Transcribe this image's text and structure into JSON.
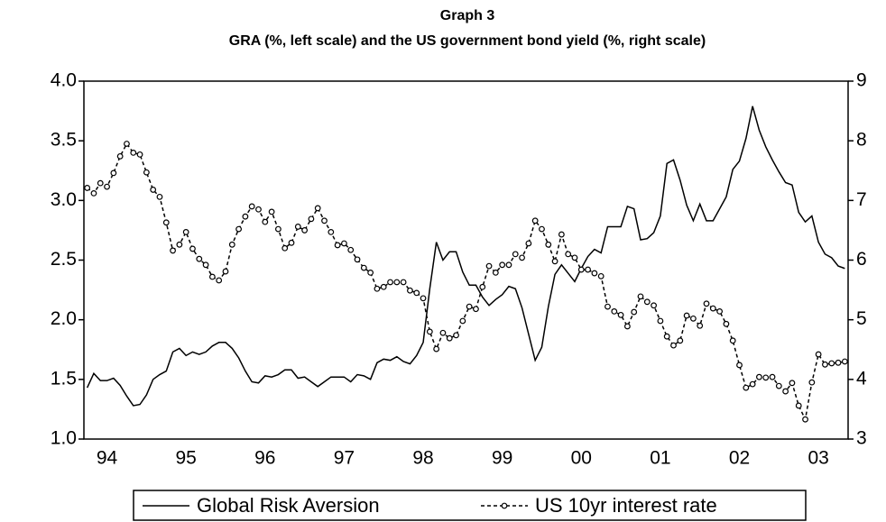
{
  "chart_data": {
    "type": "line",
    "title": "Graph 3",
    "subtitle": "GRA (%, left scale) and the US government bond yield (%, right scale)",
    "categories": [
      null,
      null,
      null,
      "94",
      null,
      null,
      null,
      null,
      null,
      null,
      null,
      null,
      null,
      null,
      null,
      "95",
      null,
      null,
      null,
      null,
      null,
      null,
      null,
      null,
      null,
      null,
      null,
      "96",
      null,
      null,
      null,
      null,
      null,
      null,
      null,
      null,
      null,
      null,
      null,
      "97",
      null,
      null,
      null,
      null,
      null,
      null,
      null,
      null,
      null,
      null,
      null,
      "98",
      null,
      null,
      null,
      null,
      null,
      null,
      null,
      null,
      null,
      null,
      null,
      "99",
      null,
      null,
      null,
      null,
      null,
      null,
      null,
      null,
      null,
      null,
      null,
      "00",
      null,
      null,
      null,
      null,
      null,
      null,
      null,
      null,
      null,
      null,
      null,
      "01",
      null,
      null,
      null,
      null,
      null,
      null,
      null,
      null,
      null,
      null,
      null,
      "02",
      null,
      null,
      null,
      null,
      null,
      null,
      null,
      null,
      null,
      null,
      null,
      "03",
      null,
      null,
      null,
      null
    ],
    "ylim": [
      1,
      4
    ],
    "yticks": [
      {
        "value": 1,
        "label": "1.0"
      },
      1.5,
      {
        "value": 2,
        "label": "2.0"
      },
      2.5,
      {
        "value": 3,
        "label": "3.0"
      },
      3.5,
      {
        "value": 4,
        "label": "4.0"
      }
    ],
    "y2lim": [
      3,
      9
    ],
    "y2ticks": [
      3,
      4,
      5,
      6,
      7,
      8,
      9
    ],
    "legend": "bottom",
    "series": [
      {
        "name": "Global Risk Aversion",
        "color": "#000000",
        "axis": "y",
        "marker": "none",
        "values": [
          1.43,
          1.55,
          1.49,
          1.49,
          1.51,
          1.45,
          1.36,
          1.28,
          1.29,
          1.37,
          1.5,
          1.54,
          1.57,
          1.73,
          1.76,
          1.7,
          1.73,
          1.71,
          1.73,
          1.78,
          1.81,
          1.81,
          1.76,
          1.68,
          1.57,
          1.48,
          1.47,
          1.53,
          1.52,
          1.54,
          1.58,
          1.58,
          1.51,
          1.52,
          1.48,
          1.44,
          1.48,
          1.52,
          1.52,
          1.52,
          1.48,
          1.54,
          1.53,
          1.5,
          1.64,
          1.67,
          1.66,
          1.69,
          1.65,
          1.63,
          1.7,
          1.81,
          2.26,
          2.65,
          2.5,
          2.57,
          2.57,
          2.4,
          2.29,
          2.29,
          2.19,
          2.12,
          2.17,
          2.21,
          2.28,
          2.26,
          2.1,
          1.88,
          1.66,
          1.77,
          2.11,
          2.38,
          2.46,
          2.39,
          2.32,
          2.43,
          2.53,
          2.59,
          2.56,
          2.78,
          2.78,
          2.78,
          2.95,
          2.93,
          2.67,
          2.68,
          2.73,
          2.87,
          3.31,
          3.34,
          3.17,
          2.96,
          2.83,
          2.97,
          2.83,
          2.83,
          2.93,
          3.03,
          3.26,
          3.33,
          3.52,
          3.79,
          3.59,
          3.45,
          3.34,
          3.24,
          3.15,
          3.13,
          2.9,
          2.82,
          2.87,
          2.65,
          2.55,
          2.52,
          2.45,
          2.43
        ]
      },
      {
        "name": "US 10yr interest rate",
        "color": "#000000",
        "axis": "y2",
        "marker": "circle",
        "dashed": true,
        "values": [
          7.21,
          7.12,
          7.29,
          7.23,
          7.46,
          7.74,
          7.95,
          7.8,
          7.77,
          7.47,
          7.18,
          7.06,
          6.63,
          6.16,
          6.26,
          6.47,
          6.19,
          6.02,
          5.92,
          5.72,
          5.66,
          5.81,
          6.26,
          6.52,
          6.73,
          6.9,
          6.85,
          6.64,
          6.81,
          6.52,
          6.2,
          6.29,
          6.56,
          6.5,
          6.69,
          6.87,
          6.66,
          6.47,
          6.25,
          6.28,
          6.17,
          6.01,
          5.87,
          5.79,
          5.52,
          5.55,
          5.63,
          5.63,
          5.63,
          5.49,
          5.45,
          5.36,
          4.8,
          4.51,
          4.78,
          4.69,
          4.74,
          4.98,
          5.22,
          5.18,
          5.55,
          5.9,
          5.79,
          5.92,
          5.92,
          6.1,
          6.04,
          6.28,
          6.66,
          6.52,
          6.26,
          5.98,
          6.43,
          6.1,
          6.04,
          5.84,
          5.84,
          5.78,
          5.73,
          5.22,
          5.14,
          5.08,
          4.89,
          5.13,
          5.39,
          5.3,
          5.24,
          4.98,
          4.72,
          4.57,
          4.65,
          5.07,
          5.02,
          4.9,
          5.27,
          5.19,
          5.14,
          4.93,
          4.65,
          4.24,
          3.86,
          3.92,
          4.04,
          4.03,
          4.04,
          3.89,
          3.8,
          3.94,
          3.56,
          3.33,
          3.95,
          4.42,
          4.25,
          4.27,
          4.28,
          4.3
        ]
      }
    ]
  }
}
